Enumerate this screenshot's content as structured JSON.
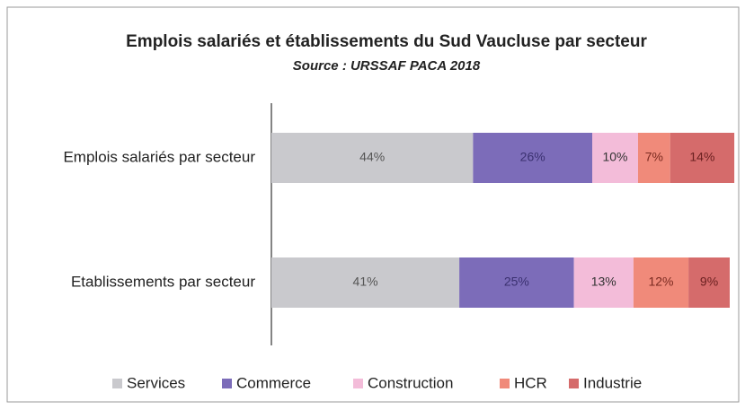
{
  "chart_data": {
    "type": "stacked_barh",
    "title": "Emplois salariés et établissements du Sud Vaucluse par secteur",
    "subtitle": "Source : URSSAF PACA 2018",
    "categories": [
      "Emplois salariés par secteur",
      "Etablissements par secteur"
    ],
    "series": [
      {
        "name": "Services",
        "color": "#c9c9cd",
        "values": [
          44,
          41
        ],
        "value_labels": [
          "44%",
          "41%"
        ]
      },
      {
        "name": "Commerce",
        "color": "#7c6cb9",
        "values": [
          26,
          25
        ],
        "value_labels": [
          "26%",
          "25%"
        ]
      },
      {
        "name": "Construction",
        "color": "#f3bcd9",
        "values": [
          10,
          13
        ],
        "value_labels": [
          "10%",
          "13%"
        ]
      },
      {
        "name": "HCR",
        "color": "#f08a7a",
        "values": [
          7,
          12
        ],
        "value_labels": [
          "7%",
          "12%"
        ]
      },
      {
        "name": "Industrie",
        "color": "#d56b6b",
        "values": [
          14,
          9
        ],
        "value_labels": [
          "14%",
          "9%"
        ]
      }
    ],
    "legend": "bottom"
  }
}
